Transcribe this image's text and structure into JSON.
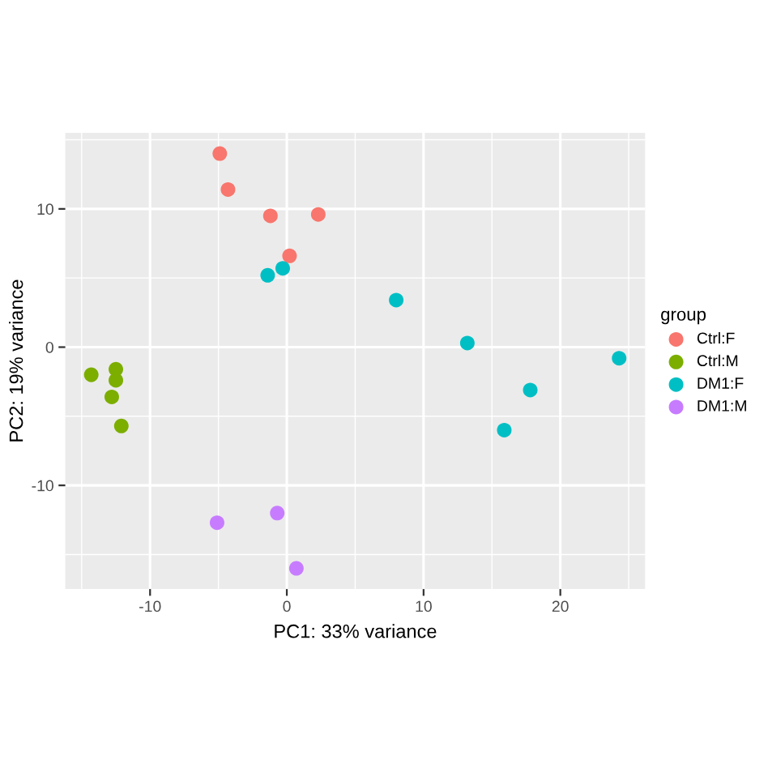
{
  "chart_data": {
    "type": "scatter",
    "xlabel": "PC1: 33% variance",
    "ylabel": "PC2: 19% variance",
    "legend_title": "group",
    "legend": "right",
    "grid": true,
    "marker": "circle",
    "xlim": [
      -16.2,
      26.2
    ],
    "ylim": [
      -17.5,
      15.5
    ],
    "xticks": [
      -10,
      0,
      10,
      20
    ],
    "yticks": [
      -10,
      0,
      10
    ],
    "series": [
      {
        "name": "Ctrl:F",
        "color": "#f8766d",
        "x": [
          -4.9,
          -4.3,
          -1.2,
          2.3,
          0.2
        ],
        "values": [
          14.0,
          11.4,
          9.5,
          9.6,
          6.6
        ]
      },
      {
        "name": "Ctrl:M",
        "color": "#7cae00",
        "x": [
          -14.3,
          -12.5,
          -12.5,
          -12.8,
          -12.1
        ],
        "values": [
          -2.0,
          -1.6,
          -2.4,
          -3.6,
          -5.7
        ]
      },
      {
        "name": "DM1:F",
        "color": "#00bfc4",
        "x": [
          -1.4,
          -0.3,
          8.0,
          13.2,
          24.3,
          17.8,
          15.9
        ],
        "values": [
          5.2,
          5.7,
          3.4,
          0.3,
          -0.8,
          -3.1,
          -6.0
        ]
      },
      {
        "name": "DM1:M",
        "color": "#c77cff",
        "x": [
          -5.1,
          -0.7,
          0.7
        ],
        "values": [
          -12.7,
          -12.0,
          -16.0
        ]
      }
    ]
  }
}
